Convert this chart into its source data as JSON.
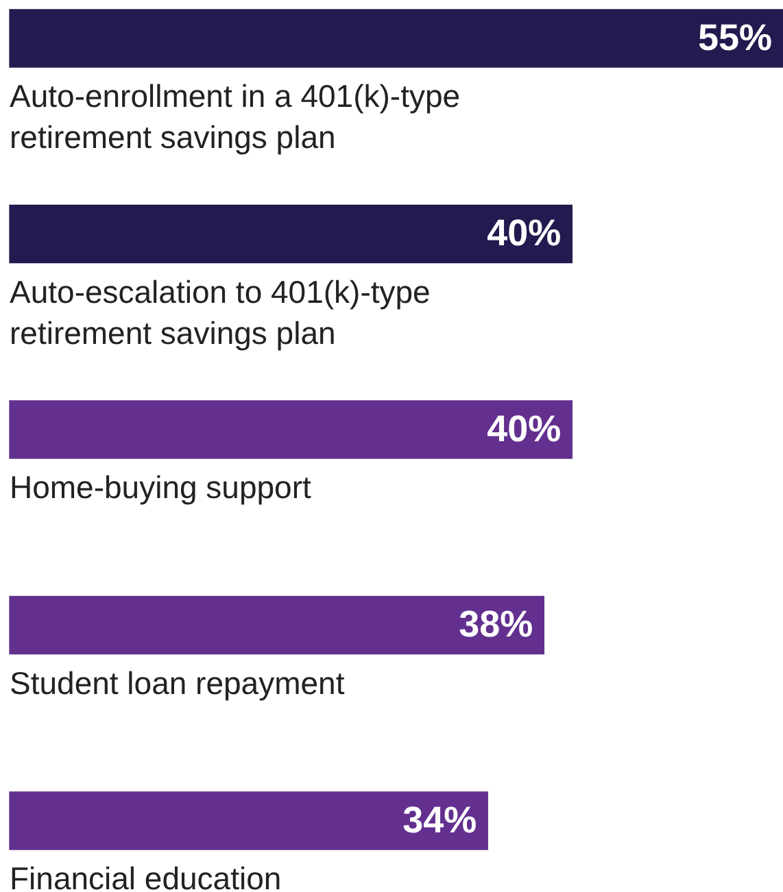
{
  "chart_data": {
    "type": "bar",
    "orientation": "horizontal",
    "categories": [
      "Auto-enrollment in a 401(k)-type retirement savings plan",
      "Auto-escalation to 401(k)-type retirement savings plan",
      "Home-buying support",
      "Student loan repayment",
      "Financial education"
    ],
    "values": [
      55,
      40,
      40,
      38,
      34
    ],
    "value_labels": [
      "55%",
      "40%",
      "40%",
      "38%",
      "34%"
    ],
    "colors": [
      "#231a4f",
      "#231a4f",
      "#63308f",
      "#63308f",
      "#63308f"
    ]
  }
}
